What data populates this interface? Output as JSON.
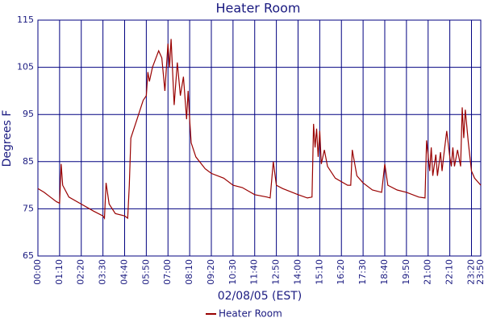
{
  "chart_data": {
    "type": "line",
    "title": "Heater Room",
    "x_label": "02/08/05 (EST)",
    "y_label": "Degrees F",
    "x": [
      "00:00",
      "00:20",
      "00:40",
      "01:00",
      "01:10",
      "01:15",
      "01:20",
      "01:40",
      "02:20",
      "03:00",
      "03:30",
      "03:35",
      "03:40",
      "03:50",
      "04:10",
      "04:40",
      "04:50",
      "04:55",
      "05:00",
      "05:20",
      "05:40",
      "05:50",
      "05:55",
      "06:00",
      "06:10",
      "06:30",
      "06:40",
      "06:50",
      "07:00",
      "07:05",
      "07:10",
      "07:20",
      "07:30",
      "07:40",
      "07:50",
      "08:00",
      "08:05",
      "08:10",
      "08:15",
      "08:30",
      "09:00",
      "09:20",
      "10:00",
      "10:30",
      "11:00",
      "11:40",
      "12:20",
      "12:30",
      "12:40",
      "12:50",
      "13:10",
      "14:00",
      "14:30",
      "14:45",
      "14:50",
      "14:55",
      "15:00",
      "15:05",
      "15:10",
      "15:15",
      "15:25",
      "15:35",
      "16:00",
      "16:40",
      "16:50",
      "16:55",
      "17:10",
      "17:30",
      "18:00",
      "18:30",
      "18:40",
      "18:50",
      "19:20",
      "19:50",
      "20:30",
      "20:50",
      "20:55",
      "21:05",
      "21:10",
      "21:15",
      "21:25",
      "21:30",
      "21:40",
      "21:45",
      "21:50",
      "22:00",
      "22:10",
      "22:15",
      "22:20",
      "22:25",
      "22:35",
      "22:45",
      "22:50",
      "22:55",
      "23:00",
      "23:10",
      "23:20",
      "23:30",
      "23:50"
    ],
    "series": [
      {
        "name": "Heater Room",
        "color": "#990000",
        "values": [
          79.3,
          78.5,
          77.5,
          76.5,
          76.2,
          84.5,
          80,
          77.5,
          76,
          74.5,
          73.5,
          73,
          80.5,
          76,
          74,
          73.5,
          73,
          80,
          90,
          94,
          98,
          99,
          104,
          102,
          105,
          108.5,
          107,
          100,
          110,
          105,
          111,
          97,
          106,
          99,
          103,
          94,
          100,
          94,
          89,
          86,
          83.5,
          82.5,
          81.5,
          80,
          79.5,
          78,
          77.5,
          77.3,
          85,
          80,
          79.3,
          78,
          77.3,
          77.5,
          93,
          88,
          92,
          86,
          91.5,
          84.5,
          87.5,
          84,
          81.5,
          80,
          80,
          87.5,
          82,
          80.5,
          79,
          78.5,
          84.5,
          80,
          79,
          78.5,
          77.5,
          77.3,
          89.5,
          83,
          88,
          82,
          86.5,
          82,
          87,
          83,
          86,
          91.5,
          86,
          84,
          88,
          84,
          87.5,
          84,
          96.5,
          90,
          96,
          89,
          83,
          81.5,
          80
        ]
      }
    ],
    "xlim": [
      "00:00",
      "23:50"
    ],
    "xticks": [
      "00:00",
      "01:10",
      "02:20",
      "03:30",
      "04:40",
      "05:50",
      "07:00",
      "08:10",
      "09:20",
      "10:30",
      "11:40",
      "12:50",
      "14:00",
      "15:10",
      "16:20",
      "17:30",
      "18:40",
      "19:50",
      "21:00",
      "22:10",
      "23:20",
      "23:50"
    ],
    "ylim": [
      65,
      115
    ],
    "yticks": [
      65,
      75,
      85,
      95,
      105,
      115
    ],
    "grid": true,
    "legend": "bottom"
  }
}
